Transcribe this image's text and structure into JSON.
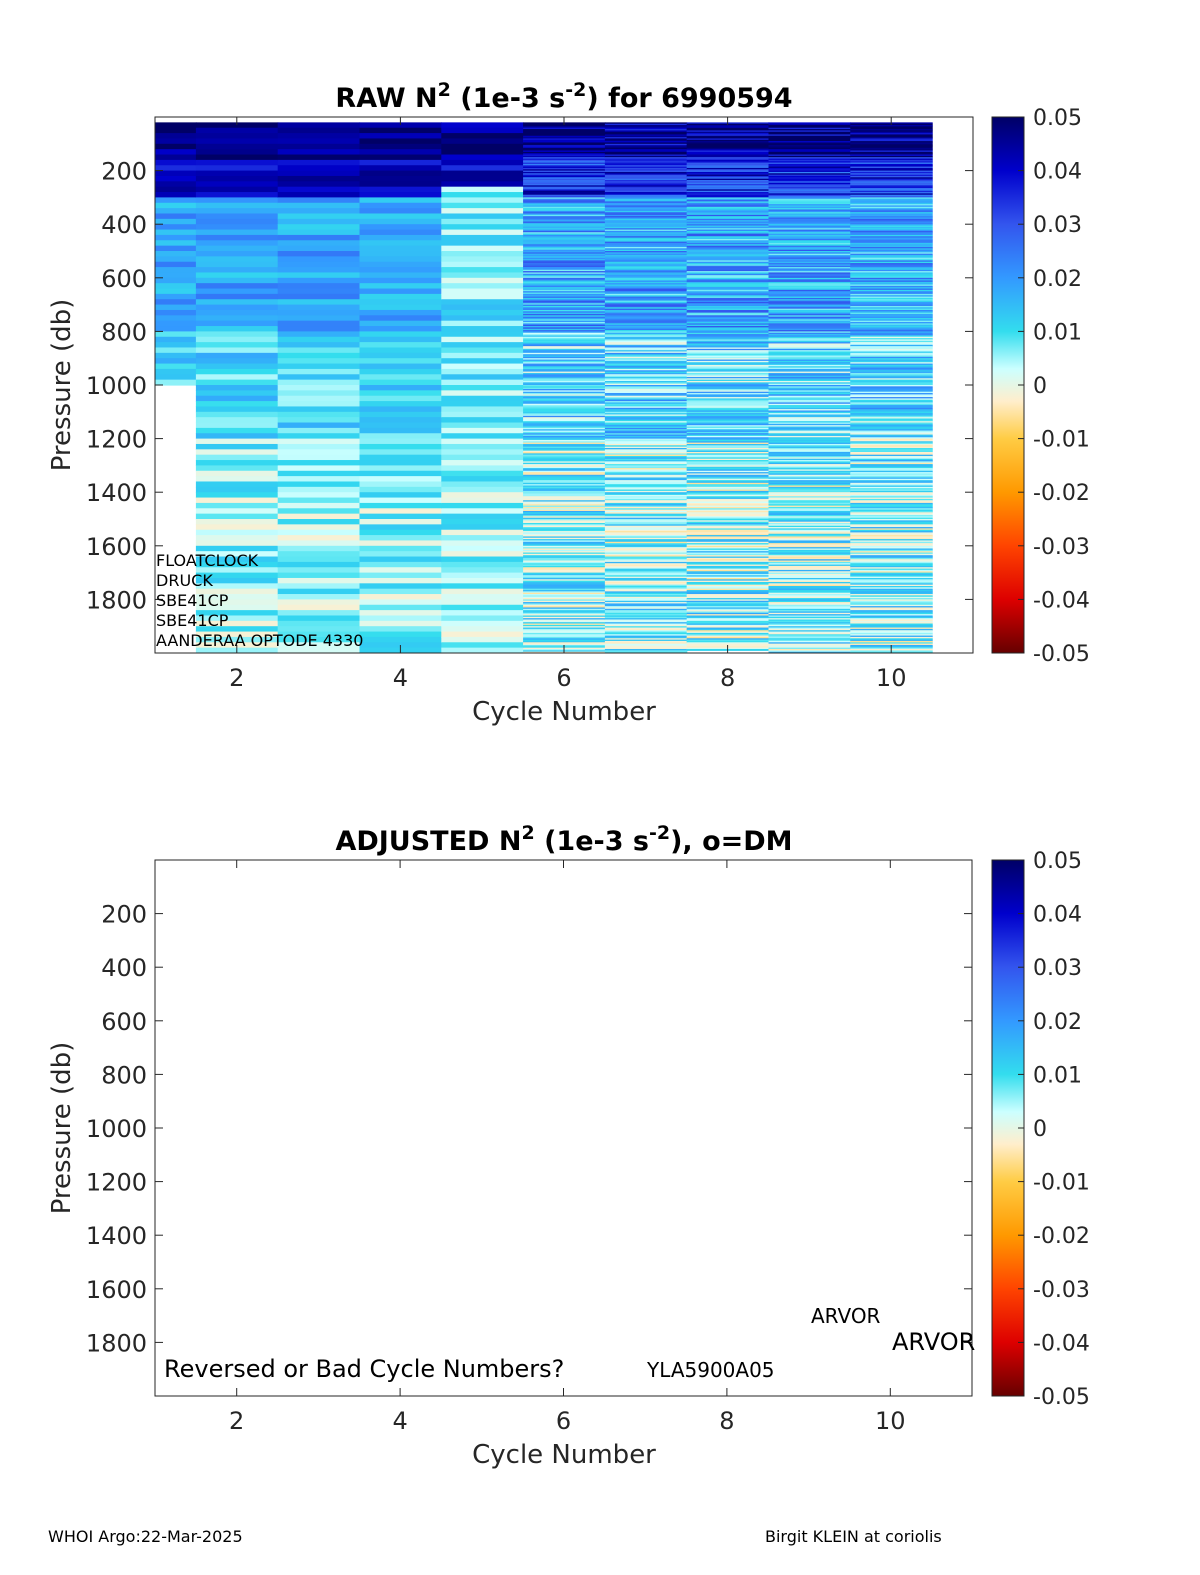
{
  "charts": [
    {
      "type": "heatmap",
      "title_main": "RAW N",
      "title_sup1": "2",
      "title_mid": " (1e-3 s",
      "title_sup2": "-2",
      "title_end": ") for 6990594",
      "xlabel": "Cycle Number",
      "ylabel": "Pressure (db)",
      "xlim": [
        1,
        11
      ],
      "ylim": [
        0,
        2000
      ],
      "y_reversed": true,
      "x_ticks": [
        "2",
        "4",
        "6",
        "8",
        "10"
      ],
      "y_ticks": [
        "200",
        "400",
        "600",
        "800",
        "1000",
        "1200",
        "1400",
        "1600",
        "1800"
      ],
      "colorbar": {
        "range": [
          -0.05,
          0.05
        ],
        "ticks": [
          "0.05",
          "0.04",
          "0.03",
          "0.02",
          "0.01",
          "0",
          "-0.01",
          "-0.02",
          "-0.03",
          "-0.04",
          "-0.05"
        ]
      },
      "cycles": [
        1,
        2,
        3,
        4,
        5,
        6,
        7,
        8,
        9,
        10
      ],
      "max_pressure": [
        1000,
        2000,
        2000,
        2000,
        2000,
        2000,
        2000,
        1990,
        2000,
        2000
      ],
      "sensor_labels": [
        "FLOATCLOCK",
        "DRUCK",
        "SBE41CP",
        "SBE41CP",
        "AANDERAA OPTODE 4330"
      ],
      "grid": false
    },
    {
      "type": "heatmap",
      "title_main": "ADJUSTED N",
      "title_sup1": "2",
      "title_mid": " (1e-3 s",
      "title_sup2": "-2",
      "title_end": "), o=DM",
      "xlabel": "Cycle Number",
      "ylabel": "Pressure (db)",
      "xlim": [
        1,
        11
      ],
      "ylim": [
        0,
        2000
      ],
      "y_reversed": true,
      "x_ticks": [
        "2",
        "4",
        "6",
        "8",
        "10"
      ],
      "y_ticks": [
        "200",
        "400",
        "600",
        "800",
        "1000",
        "1200",
        "1400",
        "1600",
        "1800"
      ],
      "colorbar": {
        "range": [
          -0.05,
          0.05
        ],
        "ticks": [
          "0.05",
          "0.04",
          "0.03",
          "0.02",
          "0.01",
          "0",
          "-0.01",
          "-0.02",
          "-0.03",
          "-0.04",
          "-0.05"
        ]
      },
      "annotations": [
        "Reversed or Bad Cycle Numbers?",
        "YLA5900A05",
        "ARVOR",
        "ARVOR"
      ],
      "grid": false
    }
  ],
  "footer": {
    "left": "WHOI Argo:22-Mar-2025",
    "right": "Birgit KLEIN at coriolis"
  }
}
